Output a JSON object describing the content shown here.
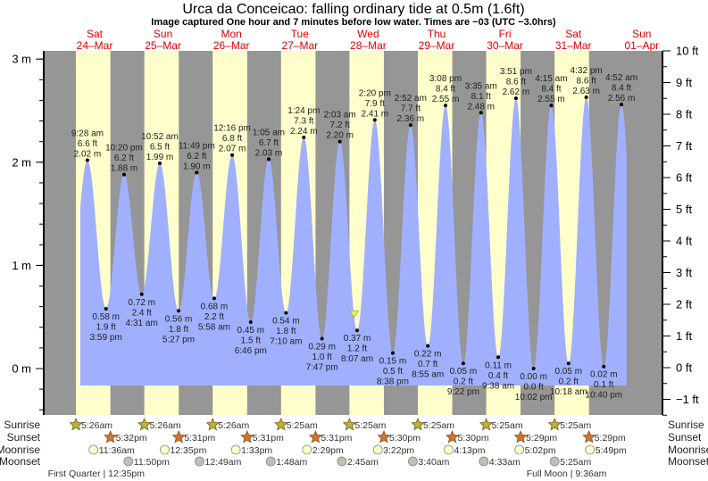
{
  "title": "Urca da Conceicao: falling  ordinary tide at 0.5m (1.6ft)",
  "subtitle": "Image captured One hour and 7 minutes before low water. Times are −03 (UTC −3.0hrs)",
  "colors": {
    "day": "#ffffcc",
    "night": "#969696",
    "tide": "#a0b0ff",
    "day_label": "#e00000",
    "sunrise": "#b5b536",
    "sunset": "#d9702e",
    "moonrise": "#ffffcc",
    "moonset": "#c0c0b0",
    "marker": "#f0f040"
  },
  "chart_data": {
    "type": "area",
    "title": "Urca da Conceicao: falling  ordinary tide at 0.5m (1.6ft)",
    "ylim_m": [
      -0.45,
      3.07
    ],
    "current_level_m": 0.5,
    "days": [
      {
        "dow": "Sat",
        "date": "24–Mar"
      },
      {
        "dow": "Sun",
        "date": "25–Mar"
      },
      {
        "dow": "Mon",
        "date": "26–Mar"
      },
      {
        "dow": "Tue",
        "date": "27–Mar"
      },
      {
        "dow": "Wed",
        "date": "28–Mar"
      },
      {
        "dow": "Thu",
        "date": "29–Mar"
      },
      {
        "dow": "Fri",
        "date": "30–Mar"
      },
      {
        "dow": "Sat",
        "date": "31–Mar"
      },
      {
        "dow": "Sun",
        "date": "01–Apr"
      }
    ],
    "left_ticks": [
      {
        "v": 3,
        "label": "3 m"
      },
      {
        "v": 2,
        "label": "2 m"
      },
      {
        "v": 1,
        "label": "1 m"
      },
      {
        "v": 0,
        "label": "0 m"
      }
    ],
    "right_ticks": [
      {
        "v": 10,
        "label": "10 ft"
      },
      {
        "v": 9,
        "label": "9 ft"
      },
      {
        "v": 8,
        "label": "8 ft"
      },
      {
        "v": 7,
        "label": "7 ft"
      },
      {
        "v": 6,
        "label": "6 ft"
      },
      {
        "v": 5,
        "label": "5 ft"
      },
      {
        "v": 4,
        "label": "4 ft"
      },
      {
        "v": 3,
        "label": "3 ft"
      },
      {
        "v": 2,
        "label": "2 ft"
      },
      {
        "v": 1,
        "label": "1 ft"
      },
      {
        "v": 0,
        "label": "0 ft"
      },
      {
        "v": -1,
        "label": "−1 ft"
      }
    ],
    "extremes": [
      {
        "type": "high",
        "time": "9:28 am",
        "m": "2.02 m",
        "ft": "6.6 ft",
        "value": 2.02
      },
      {
        "type": "low",
        "time": "3:59 pm",
        "m": "0.58 m",
        "ft": "1.9 ft",
        "value": 0.58
      },
      {
        "type": "high",
        "time": "10:20 pm",
        "m": "1.88 m",
        "ft": "6.2 ft",
        "value": 1.88
      },
      {
        "type": "low",
        "time": "4:31 am",
        "m": "0.72 m",
        "ft": "2.4 ft",
        "value": 0.72
      },
      {
        "type": "high",
        "time": "10:52 am",
        "m": "1.99 m",
        "ft": "6.5 ft",
        "value": 1.99
      },
      {
        "type": "low",
        "time": "5:27 pm",
        "m": "0.56 m",
        "ft": "1.8 ft",
        "value": 0.56
      },
      {
        "type": "high",
        "time": "11:49 pm",
        "m": "1.90 m",
        "ft": "6.2 ft",
        "value": 1.9
      },
      {
        "type": "low",
        "time": "5:58 am",
        "m": "0.68 m",
        "ft": "2.2 ft",
        "value": 0.68
      },
      {
        "type": "high",
        "time": "12:16 pm",
        "m": "2.07 m",
        "ft": "6.8 ft",
        "value": 2.07
      },
      {
        "type": "low",
        "time": "6:46 pm",
        "m": "0.45 m",
        "ft": "1.5 ft",
        "value": 0.45
      },
      {
        "type": "high",
        "time": "1:05 am",
        "m": "2.03 m",
        "ft": "6.7 ft",
        "value": 2.03
      },
      {
        "type": "low",
        "time": "7:10 am",
        "m": "0.54 m",
        "ft": "1.8 ft",
        "value": 0.54
      },
      {
        "type": "high",
        "time": "1:24 pm",
        "m": "2.24 m",
        "ft": "7.3 ft",
        "value": 2.24
      },
      {
        "type": "low",
        "time": "7:47 pm",
        "m": "0.29 m",
        "ft": "1.0 ft",
        "value": 0.29
      },
      {
        "type": "high",
        "time": "2:03 am",
        "m": "2.20 m",
        "ft": "7.2 ft",
        "value": 2.2
      },
      {
        "type": "low",
        "time": "8:07 am",
        "m": "0.37 m",
        "ft": "1.2 ft",
        "value": 0.37
      },
      {
        "type": "high",
        "time": "2:20 pm",
        "m": "2.41 m",
        "ft": "7.9 ft",
        "value": 2.41
      },
      {
        "type": "low",
        "time": "8:38 pm",
        "m": "0.15 m",
        "ft": "0.5 ft",
        "value": 0.15
      },
      {
        "type": "high",
        "time": "2:52 am",
        "m": "2.36 m",
        "ft": "7.7 ft",
        "value": 2.36
      },
      {
        "type": "low",
        "time": "8:55 am",
        "m": "0.22 m",
        "ft": "0.7 ft",
        "value": 0.22
      },
      {
        "type": "high",
        "time": "3:08 pm",
        "m": "2.55 m",
        "ft": "8.4 ft",
        "value": 2.55
      },
      {
        "type": "low",
        "time": "9:22 pm",
        "m": "0.05 m",
        "ft": "0.2 ft",
        "value": 0.05
      },
      {
        "type": "high",
        "time": "3:35 am",
        "m": "2.48 m",
        "ft": "8.1 ft",
        "value": 2.48
      },
      {
        "type": "low",
        "time": "9:38 am",
        "m": "0.11 m",
        "ft": "0.4 ft",
        "value": 0.11
      },
      {
        "type": "high",
        "time": "3:51 pm",
        "m": "2.62 m",
        "ft": "8.6 ft",
        "value": 2.62
      },
      {
        "type": "low",
        "time": "10:02 pm",
        "m": "0.00 m",
        "ft": "0.0 ft",
        "value": 0.0
      },
      {
        "type": "high",
        "time": "4:15 am",
        "m": "2.55 m",
        "ft": "8.4 ft",
        "value": 2.55
      },
      {
        "type": "low",
        "time": "10:18 am",
        "m": "0.05 m",
        "ft": "0.2 ft",
        "value": 0.05
      },
      {
        "type": "high",
        "time": "4:32 pm",
        "m": "2.63 m",
        "ft": "8.6 ft",
        "value": 2.63
      },
      {
        "type": "low",
        "time": "10:40 pm",
        "m": "0.02 m",
        "ft": "0.1 ft",
        "value": 0.02
      },
      {
        "type": "high",
        "time": "4:52 am",
        "m": "2.56 m",
        "ft": "8.4 ft",
        "value": 2.56
      }
    ]
  },
  "rows": {
    "sunrise": {
      "label": "Sunrise",
      "events": [
        {
          "day": 0,
          "time": "5:26am"
        },
        {
          "day": 1,
          "time": "5:26am"
        },
        {
          "day": 2,
          "time": "5:26am"
        },
        {
          "day": 3,
          "time": "5:25am"
        },
        {
          "day": 4,
          "time": "5:25am"
        },
        {
          "day": 5,
          "time": "5:25am"
        },
        {
          "day": 6,
          "time": "5:25am"
        },
        {
          "day": 7,
          "time": "5:25am"
        }
      ]
    },
    "sunset": {
      "label": "Sunset",
      "events": [
        {
          "day": 0,
          "time": "5:32pm"
        },
        {
          "day": 1,
          "time": "5:31pm"
        },
        {
          "day": 2,
          "time": "5:31pm"
        },
        {
          "day": 3,
          "time": "5:31pm"
        },
        {
          "day": 4,
          "time": "5:30pm"
        },
        {
          "day": 5,
          "time": "5:30pm"
        },
        {
          "day": 6,
          "time": "5:29pm"
        },
        {
          "day": 7,
          "time": "5:29pm"
        }
      ]
    },
    "moonrise": {
      "label": "Moonrise",
      "events": [
        {
          "day": 0,
          "time": "11:36am"
        },
        {
          "day": 1,
          "time": "12:35pm"
        },
        {
          "day": 2,
          "time": "1:33pm"
        },
        {
          "day": 3,
          "time": "2:29pm"
        },
        {
          "day": 4,
          "time": "3:22pm"
        },
        {
          "day": 5,
          "time": "4:13pm"
        },
        {
          "day": 6,
          "time": "5:02pm"
        },
        {
          "day": 7,
          "time": "5:49pm"
        }
      ]
    },
    "moonset": {
      "label": "Moonset",
      "events": [
        {
          "day": 0,
          "time": "11:50pm"
        },
        {
          "day": 2,
          "time": "12:49am"
        },
        {
          "day": 3,
          "time": "1:48am"
        },
        {
          "day": 4,
          "time": "2:45am"
        },
        {
          "day": 5,
          "time": "3:40am"
        },
        {
          "day": 6,
          "time": "4:33am"
        },
        {
          "day": 7,
          "time": "5:25am"
        }
      ]
    }
  },
  "phases": [
    {
      "day": 0,
      "time": "12:35pm",
      "text": "First Quarter | 12:35pm"
    },
    {
      "day": 7,
      "time": "9:36am",
      "text": "Full Moon | 9:36am"
    }
  ]
}
